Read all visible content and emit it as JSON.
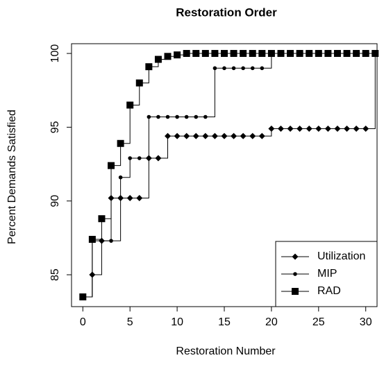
{
  "chart_data": {
    "type": "step",
    "title": "Restoration Order",
    "x_label": "Restoration Number",
    "y_label": "Percent Demands Satisfied",
    "x": [
      0,
      1,
      2,
      3,
      4,
      5,
      6,
      7,
      8,
      9,
      10,
      11,
      12,
      13,
      14,
      15,
      16,
      17,
      18,
      19,
      20,
      21,
      22,
      23,
      24,
      25,
      26,
      27,
      28,
      29,
      30,
      31
    ],
    "series": [
      {
        "name": "Utilization",
        "color": "#000000",
        "marker": "diamond",
        "values": [
          83.5,
          85.0,
          87.3,
          90.2,
          90.2,
          90.2,
          90.2,
          92.9,
          92.9,
          94.4,
          94.4,
          94.4,
          94.4,
          94.4,
          94.4,
          94.4,
          94.4,
          94.4,
          94.4,
          94.4,
          94.9,
          94.9,
          94.9,
          94.9,
          94.9,
          94.9,
          94.9,
          94.9,
          94.9,
          94.9,
          94.9,
          100
        ]
      },
      {
        "name": "MIP",
        "color": "#000000",
        "marker": "circle",
        "values": [
          83.5,
          87.3,
          87.3,
          87.3,
          91.6,
          92.9,
          92.9,
          95.7,
          95.7,
          95.7,
          95.7,
          95.7,
          95.7,
          95.7,
          99.0,
          99.0,
          99.0,
          99.0,
          99.0,
          99.0,
          100,
          100,
          100,
          100,
          100,
          100,
          100,
          100,
          100,
          100,
          100,
          100
        ]
      },
      {
        "name": "RAD",
        "color": "#000000",
        "marker": "square",
        "values": [
          83.5,
          87.4,
          88.8,
          92.4,
          93.9,
          96.5,
          98.0,
          99.1,
          99.6,
          99.8,
          99.9,
          100,
          100,
          100,
          100,
          100,
          100,
          100,
          100,
          100,
          100,
          100,
          100,
          100,
          100,
          100,
          100,
          100,
          100,
          100,
          100,
          100
        ]
      }
    ],
    "xlim": [
      -1.2,
      31.2
    ],
    "ylim": [
      82.84,
      100.66
    ],
    "xticks": [
      0,
      5,
      10,
      15,
      20,
      25,
      30
    ],
    "yticks": [
      85,
      90,
      95,
      100
    ],
    "legend": "bottom-right"
  }
}
